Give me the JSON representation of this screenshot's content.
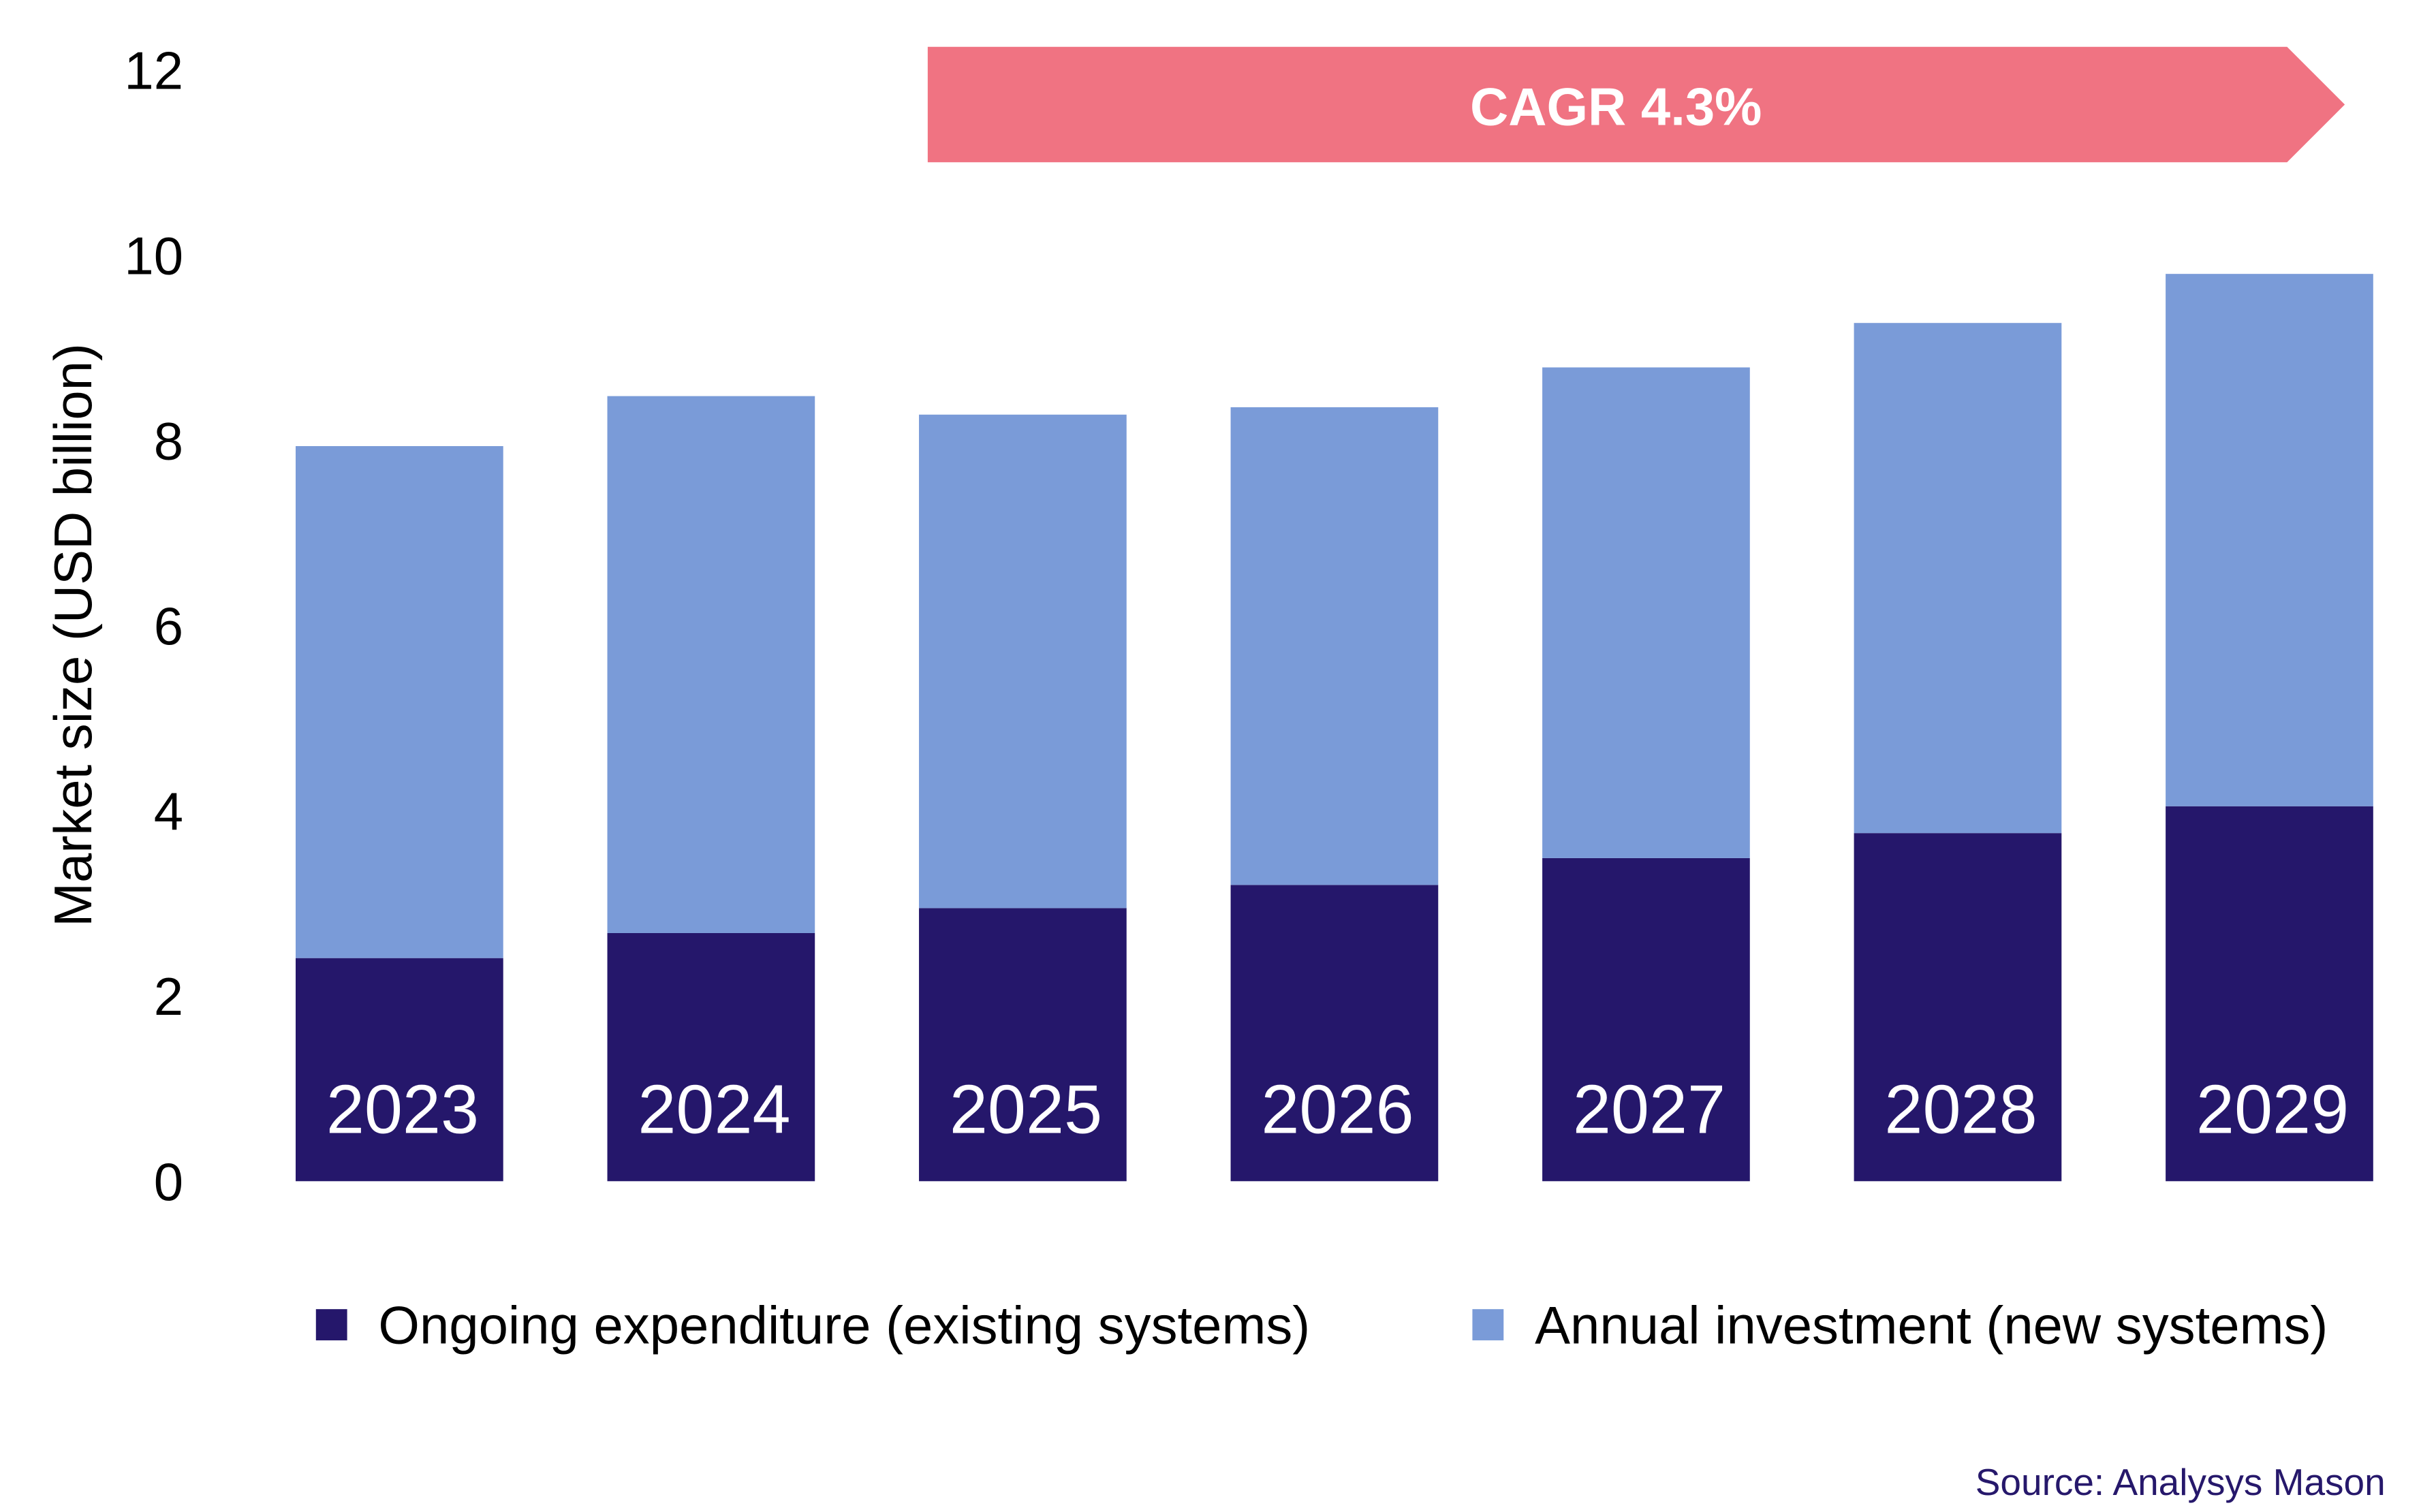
{
  "chart_data": {
    "type": "bar",
    "stacked": true,
    "categories": [
      "2023",
      "2024",
      "2025",
      "2026",
      "2027",
      "2028",
      "2029"
    ],
    "series": [
      {
        "name": "Ongoing expenditure (existing systems)",
        "color": "#25176b",
        "values": [
          2.41,
          2.68,
          2.95,
          3.2,
          3.49,
          3.76,
          4.05
        ]
      },
      {
        "name": "Annual investment (new systems)",
        "color": "#7a9bd8",
        "values": [
          5.53,
          5.8,
          5.33,
          5.16,
          5.3,
          5.51,
          5.75
        ]
      }
    ],
    "ylabel": "Market size (USD billion)",
    "ylim": [
      0,
      12
    ],
    "yticks": [
      "0",
      "2",
      "4",
      "6",
      "8",
      "10",
      "12"
    ],
    "grid": false,
    "legend_position": "bottom",
    "annotation": {
      "text": "CAGR 4.3%",
      "color": "#f07382",
      "from": "2025",
      "to": "2029"
    },
    "source": "Source: Analysys Mason"
  }
}
